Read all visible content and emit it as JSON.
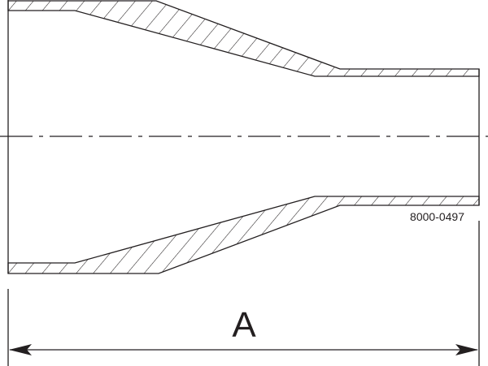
{
  "drawing": {
    "part_number": "8000-0497",
    "dimension_label": "A",
    "line_color": "#231f20",
    "background": "#ffffff"
  }
}
